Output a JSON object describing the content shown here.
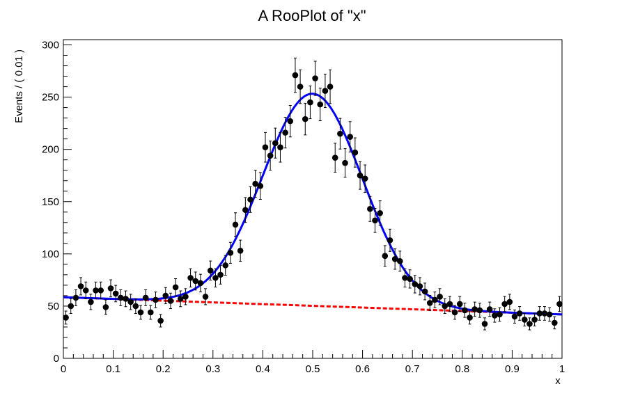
{
  "chart_data": {
    "type": "scatter",
    "title": "A RooPlot of \"x\"",
    "xlabel": "x",
    "ylabel": "Events / ( 0.01 )",
    "xlim": [
      0,
      1
    ],
    "ylim": [
      0,
      305
    ],
    "x_ticks": [
      0,
      0.1,
      0.2,
      0.3,
      0.4,
      0.5,
      0.6,
      0.7,
      0.8,
      0.9,
      1
    ],
    "x_tick_labels": [
      "0",
      "0.1",
      "0.2",
      "0.3",
      "0.4",
      "0.5",
      "0.6",
      "0.7",
      "0.8",
      "0.9",
      "1"
    ],
    "y_ticks": [
      0,
      50,
      100,
      150,
      200,
      250,
      300
    ],
    "y_tick_labels": [
      "0",
      "50",
      "100",
      "150",
      "200",
      "250",
      "300"
    ],
    "grid": false,
    "colors": {
      "data": "#000000",
      "model": "#0000ff",
      "background": "#ff0000"
    },
    "series": [
      {
        "kind": "data-points-with-errors",
        "x": [
          0.005,
          0.015,
          0.025,
          0.035,
          0.045,
          0.055,
          0.065,
          0.075,
          0.085,
          0.095,
          0.105,
          0.115,
          0.125,
          0.135,
          0.145,
          0.155,
          0.165,
          0.175,
          0.185,
          0.195,
          0.205,
          0.215,
          0.225,
          0.235,
          0.245,
          0.255,
          0.265,
          0.275,
          0.285,
          0.295,
          0.305,
          0.315,
          0.325,
          0.335,
          0.345,
          0.355,
          0.365,
          0.375,
          0.385,
          0.395,
          0.405,
          0.415,
          0.425,
          0.435,
          0.445,
          0.455,
          0.465,
          0.475,
          0.485,
          0.495,
          0.505,
          0.515,
          0.525,
          0.535,
          0.545,
          0.555,
          0.565,
          0.575,
          0.585,
          0.595,
          0.605,
          0.615,
          0.625,
          0.635,
          0.645,
          0.655,
          0.665,
          0.675,
          0.685,
          0.695,
          0.705,
          0.715,
          0.725,
          0.735,
          0.745,
          0.755,
          0.765,
          0.775,
          0.785,
          0.795,
          0.805,
          0.815,
          0.825,
          0.835,
          0.845,
          0.855,
          0.865,
          0.875,
          0.885,
          0.895,
          0.905,
          0.915,
          0.925,
          0.935,
          0.945,
          0.955,
          0.965,
          0.975,
          0.985,
          0.995
        ],
        "y": [
          39,
          50,
          58,
          69,
          65,
          54,
          65,
          65,
          49,
          67,
          62,
          58,
          57,
          54,
          50,
          44,
          58,
          44,
          56,
          36,
          60,
          55,
          68,
          57,
          59,
          77,
          74,
          72,
          59,
          84,
          77,
          80,
          89,
          101,
          128,
          103,
          142,
          152,
          167,
          165,
          202,
          194,
          206,
          202,
          216,
          227,
          271,
          260,
          229,
          245,
          268,
          243,
          256,
          260,
          192,
          215,
          187,
          212,
          197,
          175,
          172,
          143,
          132,
          139,
          98,
          113,
          95,
          93,
          77,
          76,
          71,
          69,
          64,
          53,
          56,
          59,
          50,
          52,
          44,
          52,
          46,
          39,
          47,
          46,
          33,
          47,
          41,
          42,
          52,
          54,
          40,
          43,
          37,
          33,
          37,
          43,
          43,
          42,
          34,
          52
        ]
      },
      {
        "kind": "fitted-model-curve",
        "signal_mean": 0.5,
        "signal_sigma": 0.1,
        "signal_peak": 203,
        "background_at_0": 58.5,
        "background_at_1": 42
      },
      {
        "kind": "background-component-dashed",
        "background_at_0": 58.5,
        "background_at_1": 42
      }
    ]
  }
}
